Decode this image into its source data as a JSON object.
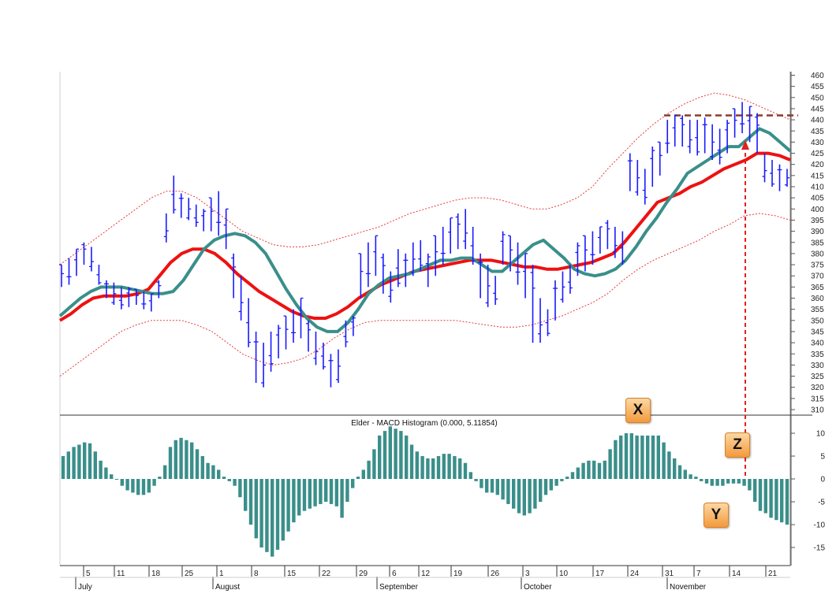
{
  "chart_data": [
    {
      "type": "ohlc",
      "ylim": [
        307,
        461
      ],
      "y_ticks": [
        310,
        315,
        320,
        325,
        330,
        335,
        340,
        345,
        350,
        355,
        360,
        365,
        370,
        375,
        380,
        385,
        390,
        395,
        400,
        405,
        410,
        415,
        420,
        425,
        430,
        435,
        440,
        445,
        450,
        455,
        460
      ],
      "bars_high": [
        375,
        378,
        382,
        385,
        383,
        375,
        368,
        367,
        365,
        365,
        364,
        363,
        362,
        368,
        398,
        415,
        407,
        405,
        402,
        400,
        405,
        408,
        400,
        380,
        370,
        360,
        345,
        340,
        345,
        348,
        352,
        355,
        360,
        350,
        345,
        340,
        335,
        337,
        350,
        352,
        380,
        385,
        388,
        380,
        372,
        382,
        380,
        385,
        386,
        380,
        388,
        392,
        396,
        398,
        400,
        392,
        380,
        375,
        370,
        390,
        388,
        385,
        380,
        375,
        360,
        355,
        368,
        372,
        375,
        385,
        388,
        390,
        392,
        395,
        392,
        390,
        425,
        422,
        418,
        428,
        430,
        440,
        442,
        442,
        440,
        440,
        441,
        438,
        436,
        440,
        445,
        448,
        446,
        443,
        425,
        422,
        420,
        418
      ],
      "bars_low": [
        365,
        366,
        370,
        375,
        372,
        366,
        360,
        357,
        355,
        356,
        357,
        355,
        354,
        360,
        385,
        398,
        396,
        395,
        392,
        390,
        390,
        388,
        382,
        360,
        350,
        338,
        322,
        320,
        327,
        333,
        337,
        340,
        342,
        336,
        330,
        328,
        320,
        322,
        338,
        343,
        360,
        365,
        370,
        362,
        358,
        365,
        365,
        370,
        372,
        365,
        370,
        375,
        380,
        382,
        382,
        375,
        360,
        356,
        357,
        375,
        372,
        366,
        360,
        340,
        340,
        343,
        350,
        358,
        362,
        370,
        372,
        375,
        380,
        382,
        378,
        375,
        408,
        406,
        402,
        410,
        415,
        425,
        428,
        428,
        425,
        424,
        425,
        422,
        420,
        425,
        432,
        434,
        430,
        425,
        412,
        410,
        408,
        410
      ],
      "ema_fast": [
        352,
        356,
        360,
        363,
        365,
        365,
        365,
        364,
        363,
        362,
        362,
        363,
        368,
        375,
        382,
        386,
        388,
        389,
        388,
        385,
        380,
        372,
        364,
        357,
        351,
        347,
        345,
        345,
        349,
        355,
        362,
        366,
        369,
        370,
        371,
        373,
        375,
        377,
        377,
        378,
        378,
        375,
        372,
        372,
        376,
        380,
        384,
        386,
        382,
        378,
        373,
        371,
        370,
        371,
        373,
        377,
        383,
        390,
        396,
        403,
        409,
        416,
        419,
        422,
        425,
        428,
        428,
        432,
        436,
        434,
        430,
        426
      ],
      "ema_slow": [
        350,
        353,
        357,
        360,
        361,
        361,
        361,
        362,
        364,
        370,
        376,
        380,
        382,
        382,
        380,
        376,
        371,
        367,
        363,
        360,
        357,
        354,
        352,
        351,
        351,
        353,
        356,
        360,
        363,
        366,
        368,
        370,
        372,
        373,
        374,
        375,
        376,
        377,
        377,
        377,
        376,
        375,
        374,
        374,
        373,
        373,
        374,
        375,
        376,
        378,
        380,
        385,
        391,
        397,
        403,
        405,
        407,
        410,
        412,
        415,
        418,
        420,
        422,
        425,
        425,
        424,
        422
      ],
      "envelope_upper": [
        375,
        380,
        385,
        390,
        395,
        400,
        405,
        408,
        408,
        405,
        400,
        395,
        390,
        387,
        384,
        383,
        383,
        384,
        386,
        388,
        390,
        392,
        395,
        398,
        400,
        402,
        404,
        405,
        405,
        404,
        402,
        400,
        400,
        402,
        405,
        410,
        418,
        425,
        432,
        438,
        443,
        447,
        450,
        452,
        451,
        449,
        446,
        443,
        440
      ],
      "envelope_lower": [
        325,
        330,
        335,
        340,
        345,
        348,
        350,
        350,
        350,
        348,
        345,
        340,
        335,
        332,
        330,
        331,
        333,
        337,
        342,
        346,
        349,
        350,
        350,
        350,
        350,
        350,
        350,
        349,
        348,
        347,
        347,
        348,
        350,
        352,
        355,
        358,
        362,
        368,
        373,
        377,
        380,
        383,
        386,
        390,
        393,
        397,
        398,
        397,
        395
      ],
      "resistance": 442,
      "bar_color": "#1a1aff",
      "ema_fast_color": "#3a8f8a",
      "ema_slow_color": "#ee1111",
      "envelope_color": "#e63b3b",
      "resistance_color": "#8b3a2a"
    },
    {
      "type": "bar",
      "title": "Elder - MACD Histogram (0.000, 5.11854)",
      "ylim": [
        -18,
        13
      ],
      "y_ticks": [
        10,
        5,
        0,
        -5,
        -10,
        -15
      ],
      "values": [
        5,
        6,
        7,
        7.5,
        8,
        7.8,
        6,
        4,
        2.5,
        1,
        0,
        -1.5,
        -2.5,
        -3,
        -3.5,
        -3.5,
        -3,
        -1.5,
        0.5,
        3,
        7,
        8.5,
        9,
        8.5,
        8,
        6.5,
        5,
        3.5,
        3,
        2,
        0.5,
        -0.5,
        -1.5,
        -4,
        -7,
        -10,
        -13,
        -15,
        -16,
        -17,
        -15.5,
        -13.5,
        -11.5,
        -9.5,
        -8,
        -7,
        -6.5,
        -6,
        -5.5,
        -5,
        -5.5,
        -6,
        -8.5,
        -5,
        -2,
        0.5,
        2,
        4,
        6.5,
        9.5,
        10.5,
        11.5,
        11,
        10.5,
        9.5,
        7.5,
        6,
        5,
        4.5,
        4.5,
        5,
        5.5,
        5.5,
        5,
        4.5,
        3.5,
        1.5,
        -0.5,
        -2,
        -3,
        -3,
        -3.5,
        -4.5,
        -5.5,
        -6.5,
        -7.5,
        -8,
        -7.5,
        -6.5,
        -5,
        -3.5,
        -2.5,
        -1.5,
        -0.5,
        0.5,
        1.5,
        2.5,
        3.5,
        4,
        4,
        3.5,
        4,
        6.5,
        8.5,
        9.5,
        10,
        10,
        9.5,
        9.5,
        9.5,
        9.5,
        9.5,
        8,
        6,
        4.5,
        3,
        2,
        1,
        0.5,
        -0.5,
        -1,
        -1.5,
        -1.5,
        -1.5,
        -1,
        -1,
        -1,
        -1.5,
        -2.5,
        -5,
        -7,
        -7.5,
        -8.5,
        -9,
        -9.5,
        -10
      ],
      "bar_color": "#3a8f8a"
    }
  ],
  "x_axis": {
    "day_labels": [
      "5",
      "11",
      "18",
      "25",
      "1",
      "8",
      "15",
      "22",
      "29",
      "6",
      "12",
      "19",
      "26",
      "3",
      "10",
      "17",
      "24",
      "31",
      "7",
      "14",
      "21"
    ],
    "month_labels": [
      "July",
      "August",
      "September",
      "October",
      "November"
    ]
  },
  "annotations": {
    "x_label": "X",
    "y_label": "Y",
    "z_label": "Z",
    "arrow_color": "#e02020"
  }
}
